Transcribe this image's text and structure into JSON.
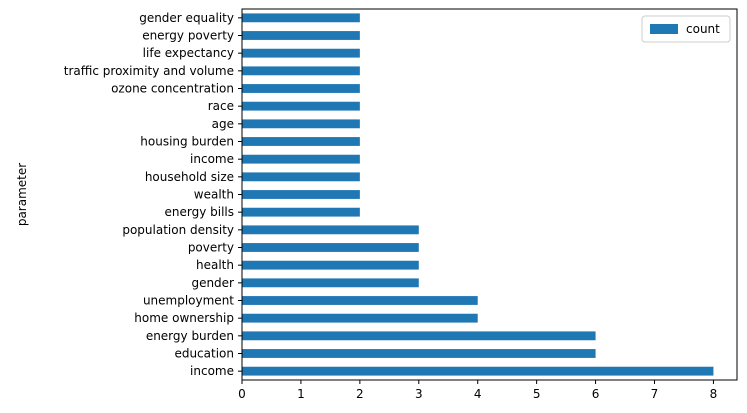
{
  "chart_data": {
    "type": "bar",
    "orientation": "horizontal",
    "categories": [
      "income",
      "education",
      "energy burden",
      "home ownership",
      "unemployment",
      "gender",
      "health",
      "poverty",
      "population density",
      "energy bills",
      "wealth",
      "household size",
      "income",
      "housing burden",
      "age",
      "race",
      "ozone concentration",
      "traffic proximity and volume",
      "life expectancy",
      "energy poverty",
      "gender equality"
    ],
    "series": [
      {
        "name": "count",
        "values": [
          8,
          6,
          6,
          4,
          4,
          3,
          3,
          3,
          3,
          2,
          2,
          2,
          2,
          2,
          2,
          2,
          2,
          2,
          2,
          2,
          2
        ],
        "color": "#1f77b4"
      }
    ],
    "xlabel": "",
    "ylabel": "parameter",
    "xlim": [
      0,
      8.4
    ],
    "xticks": [
      0,
      1,
      2,
      3,
      4,
      5,
      6,
      7,
      8
    ],
    "grid": false,
    "legend_position": "top-right"
  }
}
